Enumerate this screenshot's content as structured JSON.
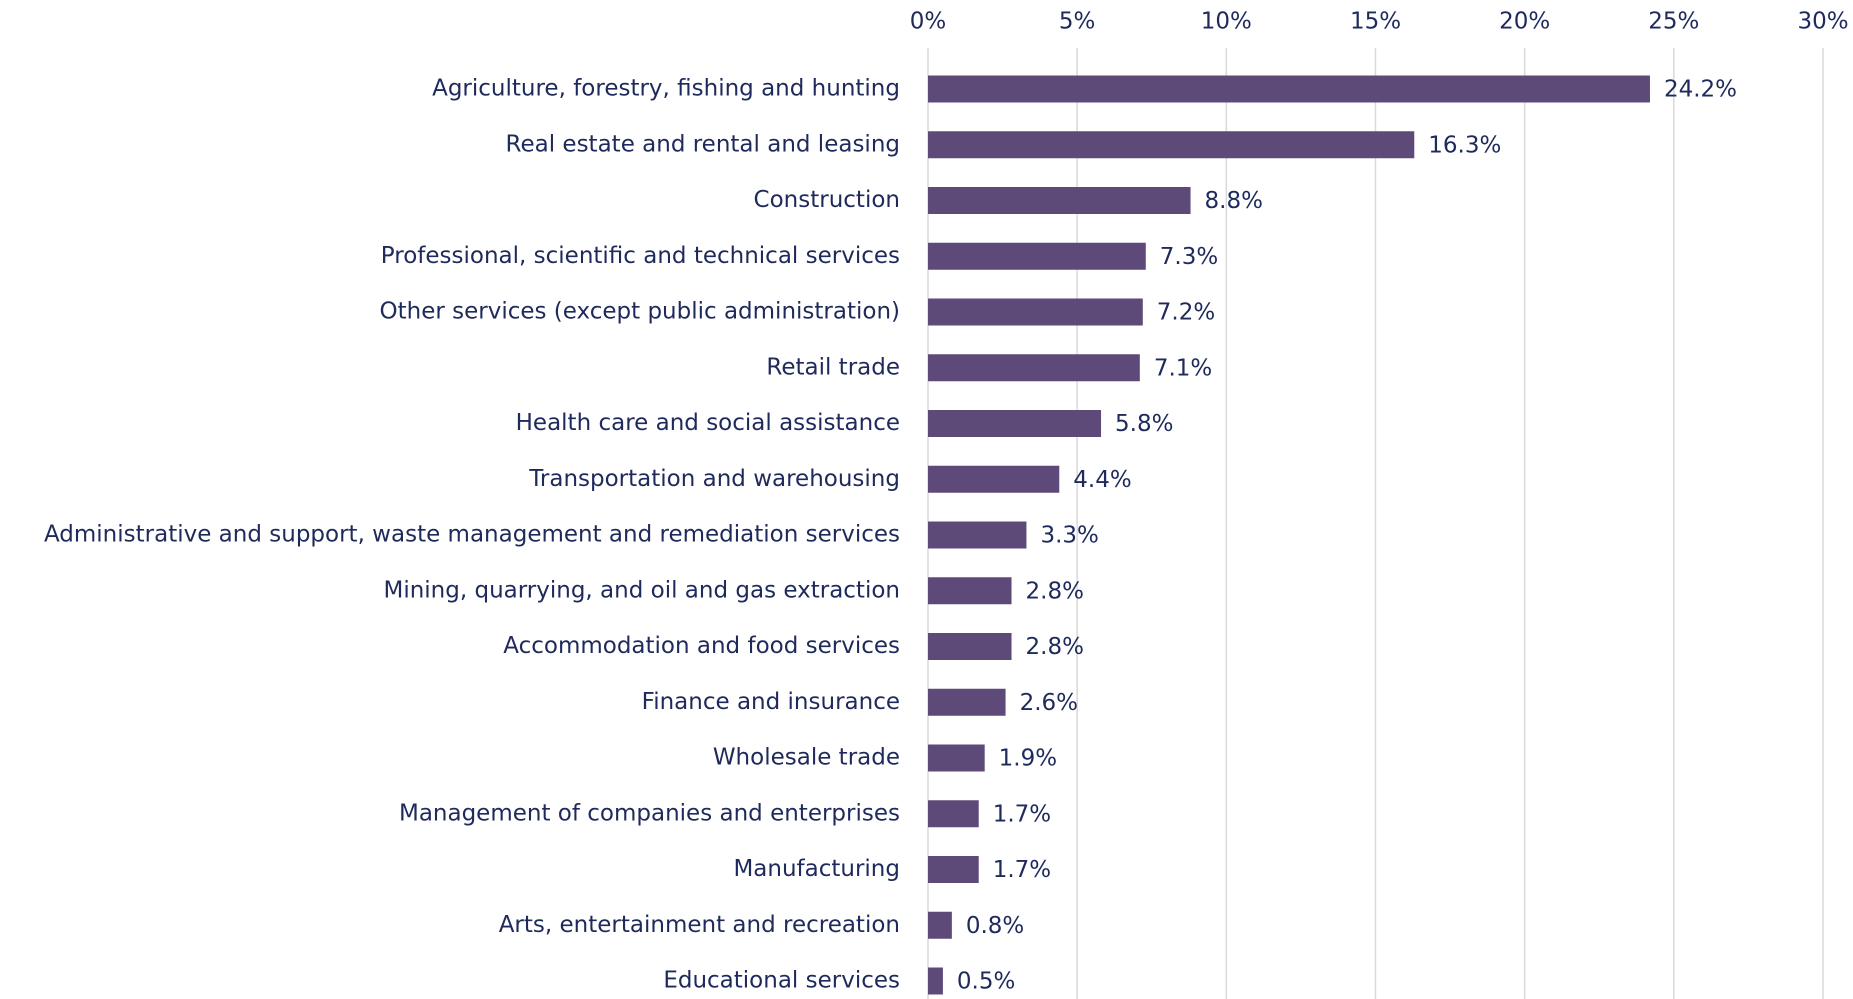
{
  "chart_data": {
    "type": "bar",
    "orientation": "horizontal",
    "categories": [
      "Agriculture, forestry, fishing and hunting",
      "Real estate and rental and leasing",
      "Construction",
      "Professional, scientific and technical services",
      "Other services (except public administration)",
      "Retail trade",
      "Health care and social assistance",
      "Transportation and warehousing",
      "Administrative and support, waste management and remediation services",
      "Mining, quarrying, and oil and gas extraction",
      "Accommodation and food services",
      "Finance and insurance",
      "Wholesale trade",
      "Management of companies and enterprises",
      "Manufacturing",
      "Arts, entertainment and recreation",
      "Educational services"
    ],
    "values": [
      24.2,
      16.3,
      8.8,
      7.3,
      7.2,
      7.1,
      5.8,
      4.4,
      3.3,
      2.8,
      2.8,
      2.6,
      1.9,
      1.7,
      1.7,
      0.8,
      0.5
    ],
    "value_labels": [
      "24.2%",
      "16.3%",
      "8.8%",
      "7.3%",
      "7.2%",
      "7.1%",
      "5.8%",
      "4.4%",
      "3.3%",
      "2.8%",
      "2.8%",
      "2.6%",
      "1.9%",
      "1.7%",
      "1.7%",
      "0.8%",
      "0.5%"
    ],
    "color": "#5e4a78",
    "xlim": [
      0,
      30
    ],
    "xticks": [
      {
        "value": 0,
        "label": "0%"
      },
      {
        "value": 5,
        "label": "5%"
      },
      {
        "value": 10,
        "label": "10%"
      },
      {
        "value": 15,
        "label": "15%"
      },
      {
        "value": 20,
        "label": "20%"
      },
      {
        "value": 25,
        "label": "25%"
      },
      {
        "value": 30,
        "label": "30%"
      }
    ],
    "grid": true
  }
}
